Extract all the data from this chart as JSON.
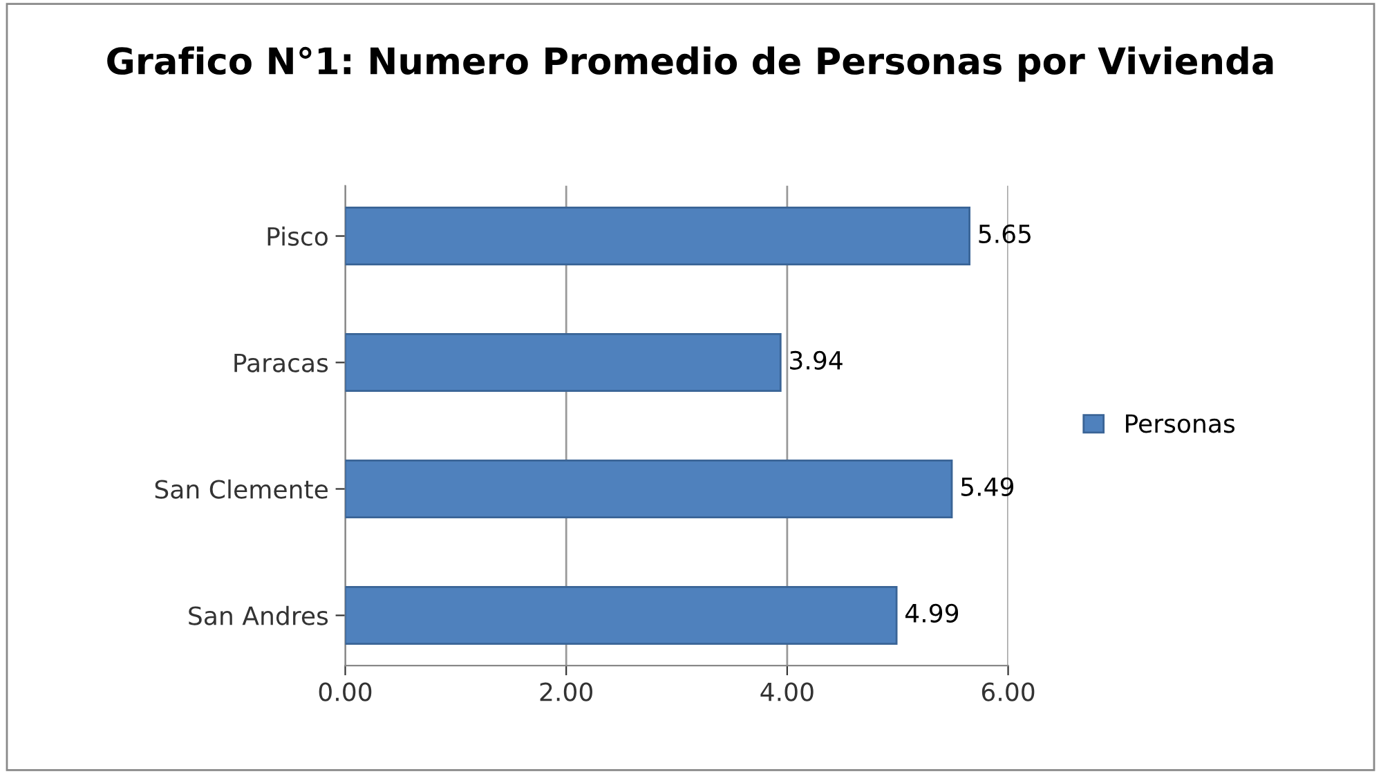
{
  "chart_data": {
    "type": "bar",
    "orientation": "horizontal",
    "title": "Grafico N°1: Numero Promedio de Personas por Vivienda",
    "categories": [
      "Pisco",
      "Paracas",
      "San Clemente",
      "San Andres"
    ],
    "series": [
      {
        "name": "Personas",
        "color": "#4f81bd",
        "values": [
          5.65,
          3.94,
          5.49,
          4.99
        ]
      }
    ],
    "xlim": [
      0,
      6
    ],
    "xticks": [
      {
        "value": 0,
        "label": "0.00"
      },
      {
        "value": 2,
        "label": "2.00"
      },
      {
        "value": 4,
        "label": "4.00"
      },
      {
        "value": 6,
        "label": "6.00"
      }
    ],
    "grid": "x",
    "legend": "right",
    "data_labels": true
  }
}
